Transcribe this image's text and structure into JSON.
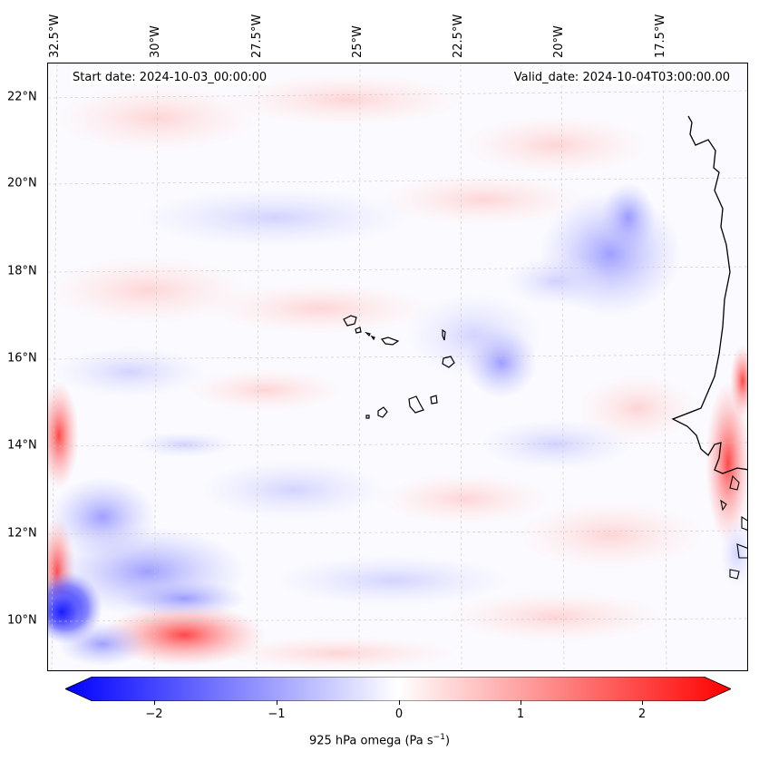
{
  "map": {
    "lon_labels": [
      "32.5°W",
      "30°W",
      "27.5°W",
      "25°W",
      "22.5°W",
      "20°W",
      "17.5°W"
    ],
    "lat_labels": [
      "22°N",
      "20°N",
      "18°N",
      "16°N",
      "14°N",
      "12°N",
      "10°N"
    ],
    "start_date": "Start date: 2024-10-03_00:00:00",
    "valid_date": "Valid_date: 2024-10-04T03:00:00.00",
    "gridlines": true
  },
  "colorbar": {
    "ticks": [
      "−2",
      "−1",
      "0",
      "1",
      "2"
    ],
    "label_main": "925 hPa omega (Pa s",
    "label_exp": "−1",
    "label_end": ")",
    "min_color": "#0000ff",
    "mid_color": "#ffffff",
    "max_color": "#ff0000"
  }
}
